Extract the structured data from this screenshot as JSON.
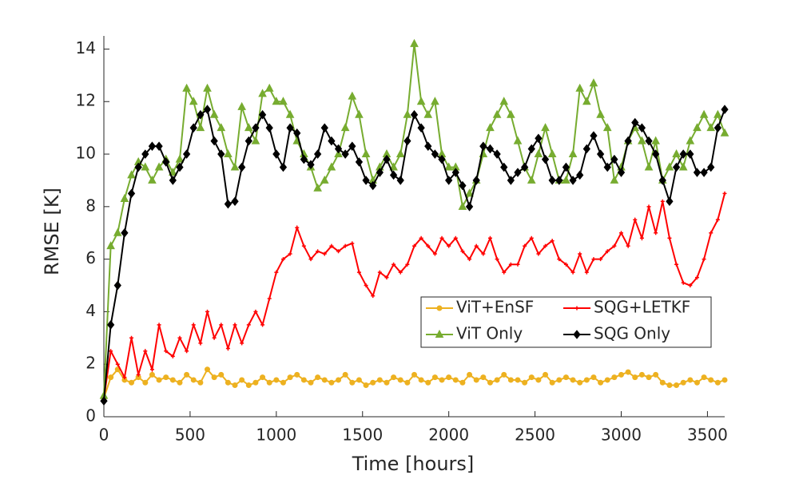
{
  "chart_data": {
    "type": "line",
    "xlabel": "Time [hours]",
    "ylabel": "RMSE [K]",
    "xlim": [
      0,
      3600
    ],
    "ylim": [
      0,
      14.5
    ],
    "xticks": [
      0,
      500,
      1000,
      1500,
      2000,
      2500,
      3000,
      3500
    ],
    "yticks": [
      0,
      2,
      4,
      6,
      8,
      10,
      12,
      14
    ],
    "legend": "lower right",
    "x": [
      0,
      40,
      80,
      120,
      160,
      200,
      240,
      280,
      320,
      360,
      400,
      440,
      480,
      520,
      560,
      600,
      640,
      680,
      720,
      760,
      800,
      840,
      880,
      920,
      960,
      1000,
      1040,
      1080,
      1120,
      1160,
      1200,
      1240,
      1280,
      1320,
      1360,
      1400,
      1440,
      1480,
      1520,
      1560,
      1600,
      1640,
      1680,
      1720,
      1760,
      1800,
      1840,
      1880,
      1920,
      1960,
      2000,
      2040,
      2080,
      2120,
      2160,
      2200,
      2240,
      2280,
      2320,
      2360,
      2400,
      2440,
      2480,
      2520,
      2560,
      2600,
      2640,
      2680,
      2720,
      2760,
      2800,
      2840,
      2880,
      2920,
      2960,
      3000,
      3040,
      3080,
      3120,
      3160,
      3200,
      3240,
      3280,
      3320,
      3360,
      3400,
      3440,
      3480,
      3520,
      3560,
      3600
    ],
    "series": [
      {
        "name": "ViT+EnSF",
        "color": "#EDB120",
        "marker": "o",
        "values": [
          0.7,
          1.5,
          1.8,
          1.4,
          1.3,
          1.5,
          1.3,
          1.6,
          1.4,
          1.5,
          1.4,
          1.3,
          1.6,
          1.4,
          1.3,
          1.8,
          1.5,
          1.6,
          1.3,
          1.2,
          1.4,
          1.2,
          1.3,
          1.5,
          1.3,
          1.4,
          1.3,
          1.5,
          1.6,
          1.4,
          1.3,
          1.5,
          1.4,
          1.3,
          1.4,
          1.6,
          1.3,
          1.4,
          1.2,
          1.3,
          1.4,
          1.3,
          1.5,
          1.4,
          1.3,
          1.6,
          1.4,
          1.3,
          1.5,
          1.4,
          1.5,
          1.4,
          1.3,
          1.6,
          1.4,
          1.5,
          1.3,
          1.4,
          1.6,
          1.4,
          1.4,
          1.3,
          1.5,
          1.4,
          1.6,
          1.3,
          1.4,
          1.5,
          1.4,
          1.3,
          1.4,
          1.5,
          1.3,
          1.4,
          1.5,
          1.6,
          1.7,
          1.5,
          1.6,
          1.5,
          1.6,
          1.3,
          1.2,
          1.2,
          1.3,
          1.4,
          1.3,
          1.5,
          1.4,
          1.3,
          1.4
        ]
      },
      {
        "name": "SQG+LETKF",
        "color": "#FF0000",
        "marker": "+",
        "values": [
          0.7,
          2.5,
          2,
          1.5,
          3,
          1.6,
          2.5,
          1.8,
          3.5,
          2.5,
          2.3,
          3,
          2.5,
          3.5,
          2.8,
          4,
          3,
          3.5,
          2.6,
          3.5,
          2.8,
          3.5,
          4,
          3.5,
          4.5,
          5.5,
          6,
          6.2,
          7.2,
          6.5,
          6,
          6.3,
          6.2,
          6.5,
          6.3,
          6.5,
          6.6,
          5.5,
          5,
          4.6,
          5.5,
          5.3,
          5.8,
          5.5,
          5.8,
          6.5,
          6.8,
          6.5,
          6.2,
          6.8,
          6.5,
          6.8,
          6.3,
          6,
          6.5,
          6.2,
          6.8,
          6,
          5.5,
          5.8,
          5.8,
          6.5,
          6.8,
          6.2,
          6.5,
          6.7,
          6,
          5.8,
          5.5,
          6.2,
          5.5,
          6,
          6,
          6.3,
          6.5,
          7,
          6.5,
          7.5,
          6.8,
          8,
          7,
          8.2,
          6.8,
          5.8,
          5.1,
          5,
          5.3,
          6,
          7,
          7.5,
          8.5
        ]
      },
      {
        "name": "ViT Only",
        "color": "#77AC30",
        "marker": "^",
        "values": [
          0.8,
          6.5,
          7,
          8.3,
          9.2,
          9.7,
          9.5,
          9,
          9.5,
          9.8,
          9.3,
          9.8,
          12.5,
          12,
          11,
          12.5,
          11.5,
          11,
          10,
          9.5,
          11.8,
          11,
          10.5,
          12.3,
          12.5,
          12,
          12,
          11.5,
          10.5,
          10,
          9.5,
          8.7,
          9,
          9.5,
          10,
          11,
          12.2,
          11.5,
          10,
          9,
          9.5,
          10,
          9.5,
          10,
          11.5,
          14.2,
          12,
          11.5,
          12,
          10,
          9.5,
          9.5,
          8,
          8.5,
          9,
          10,
          11,
          11.5,
          12,
          11.5,
          10.5,
          9.5,
          9,
          10,
          11,
          10,
          9,
          9,
          10,
          12.5,
          12,
          12.7,
          11.5,
          11,
          9,
          9.5,
          10.5,
          11,
          10.5,
          9.5,
          10.5,
          9,
          9.5,
          10,
          9.5,
          10.5,
          11,
          11.5,
          11,
          11.5,
          10.8
        ]
      },
      {
        "name": "SQG Only",
        "color": "#000000",
        "marker": "d",
        "values": [
          0.6,
          3.5,
          5,
          7,
          8.5,
          9.5,
          10,
          10.3,
          10.3,
          9.7,
          9,
          9.5,
          10,
          11,
          11.5,
          11.7,
          10.5,
          10,
          8.1,
          8.2,
          9.5,
          10.5,
          11,
          11.5,
          11,
          10,
          9.5,
          11,
          10.8,
          9.8,
          9.6,
          10,
          11,
          10.5,
          10.2,
          10,
          10.3,
          9.7,
          9,
          8.8,
          9.3,
          9.8,
          9.2,
          9,
          10.5,
          11.5,
          11,
          10.3,
          10,
          9.8,
          9,
          9.3,
          8.8,
          8,
          9,
          10.3,
          10.2,
          10,
          9.5,
          9,
          9.3,
          9.5,
          10.2,
          10.6,
          9.8,
          9,
          9,
          9.5,
          9,
          9.2,
          10.2,
          10.7,
          10,
          9.5,
          9.8,
          9.3,
          10.5,
          11.2,
          11,
          10.5,
          10,
          9,
          8.2,
          9.5,
          10,
          10,
          9.3,
          9.3,
          9.5,
          11,
          11.7
        ]
      }
    ]
  }
}
